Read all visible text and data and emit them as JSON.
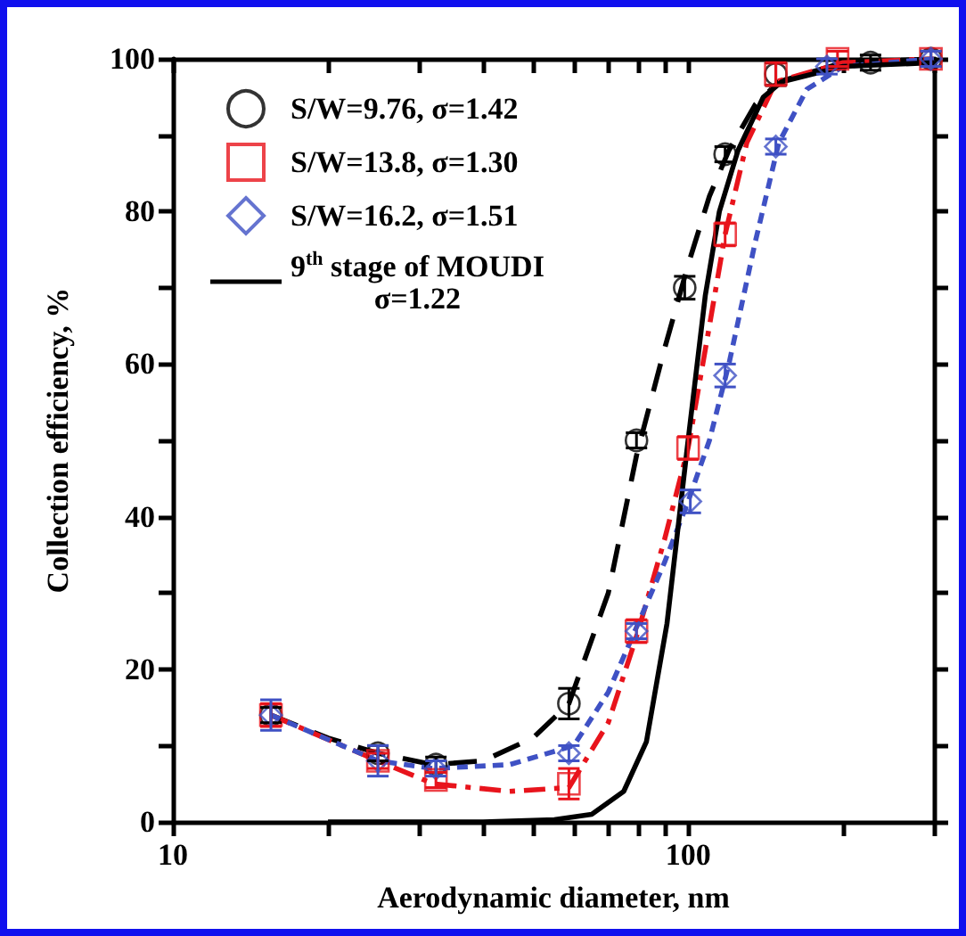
{
  "chart_data": {
    "type": "scatter",
    "xlabel": "Aerodynamic diameter, nm",
    "ylabel": "Collection efficiency, %",
    "log": "x",
    "xlim": [
      10,
      300
    ],
    "xticks": [
      10,
      {
        "value": 20,
        "label": null
      },
      {
        "value": 30,
        "label": null
      },
      {
        "value": 40,
        "label": null
      },
      {
        "value": 50,
        "label": null
      },
      {
        "value": 60,
        "label": null
      },
      {
        "value": 70,
        "label": null
      },
      {
        "value": 80,
        "label": null
      },
      {
        "value": 90,
        "label": null
      },
      100,
      {
        "value": 200,
        "label": null
      },
      {
        "value": 300,
        "label": null
      }
    ],
    "ylim": [
      0,
      100
    ],
    "yticks": [
      0,
      {
        "value": 10,
        "label": null
      },
      20,
      {
        "value": 30,
        "label": null
      },
      40,
      {
        "value": 50,
        "label": null
      },
      60,
      {
        "value": 70,
        "label": null
      },
      80,
      {
        "value": 90,
        "label": null
      },
      100
    ],
    "grid": false,
    "legend": "top left",
    "series": [
      {
        "name": "S/W=9.76, σ=1.42",
        "marker": "circle",
        "color": "#000000",
        "x": [
          15.5,
          25,
          32.4,
          58.7,
          79.4,
          98.5,
          118,
          148,
          226,
          296
        ],
        "values": [
          14,
          9,
          7.5,
          15.5,
          50,
          70,
          87.5,
          98,
          99.5,
          100
        ],
        "errors": [
          1,
          1,
          1,
          2,
          1,
          1.5,
          1,
          1.5,
          1,
          1
        ]
      },
      {
        "name": "S/W=13.8, σ=1.30",
        "marker": "square",
        "color": "#e8141c",
        "x": [
          15.5,
          25,
          32.4,
          58.7,
          79.4,
          100,
          118,
          148,
          195,
          296
        ],
        "values": [
          14,
          8,
          5.5,
          5,
          25,
          49,
          77,
          98,
          100,
          100
        ],
        "errors": [
          1.5,
          1,
          1,
          2,
          1.5,
          1.5,
          1.5,
          1.5,
          1,
          1
        ]
      },
      {
        "name": "S/W=16.2, σ=1.51",
        "marker": "diamond",
        "color": "#3f51c4",
        "x": [
          15.5,
          25,
          32.4,
          58.7,
          79.4,
          101,
          118,
          148,
          186,
          296
        ],
        "values": [
          14,
          8,
          7,
          9,
          25,
          42,
          58.5,
          88.5,
          99,
          100
        ],
        "errors": [
          2,
          2,
          1,
          1,
          1,
          1.5,
          1.5,
          1,
          1,
          1
        ]
      },
      {
        "type": "line",
        "line_style": "dashed",
        "color": "#000000",
        "x": [
          15.5,
          20,
          25,
          32,
          40,
          50,
          58.7,
          70,
          79.4,
          90,
          100,
          110,
          120,
          135,
          150,
          200,
          300
        ],
        "values": [
          14,
          11,
          9,
          7.5,
          8,
          11,
          15.5,
          30,
          48,
          62,
          73,
          82,
          88,
          94,
          97,
          99.5,
          100
        ]
      },
      {
        "type": "line",
        "line_style": "dashed",
        "color": "#e8141c",
        "x": [
          15.5,
          25,
          32,
          45,
          58.7,
          70,
          80,
          90,
          100,
          110,
          118,
          130,
          148,
          200,
          300
        ],
        "values": [
          14,
          8,
          5,
          4,
          4.5,
          13,
          25,
          37,
          49,
          65,
          77,
          89,
          97,
          99.5,
          100
        ]
      },
      {
        "type": "line",
        "line_style": "dashed",
        "color": "#3f51c4",
        "x": [
          15.5,
          25,
          32,
          45,
          60,
          70,
          80,
          90,
          100,
          110,
          120,
          135,
          150,
          170,
          200,
          300
        ],
        "values": [
          14,
          8,
          7,
          7.5,
          10,
          17,
          26,
          34,
          42,
          50,
          60,
          76,
          89,
          96,
          99,
          100
        ]
      },
      {
        "name": "9$^{th}$ stage of MOUDI σ=1.22",
        "type": "line",
        "line_style": "solid",
        "color": "#000000",
        "x": [
          20,
          40,
          55,
          65,
          75,
          83,
          91,
          100,
          108,
          115,
          125,
          140,
          152,
          200,
          300
        ],
        "values": [
          0,
          0,
          0.3,
          1,
          4,
          10.5,
          26,
          50,
          69,
          80,
          88,
          95,
          97,
          99,
          99.5
        ]
      }
    ]
  }
}
